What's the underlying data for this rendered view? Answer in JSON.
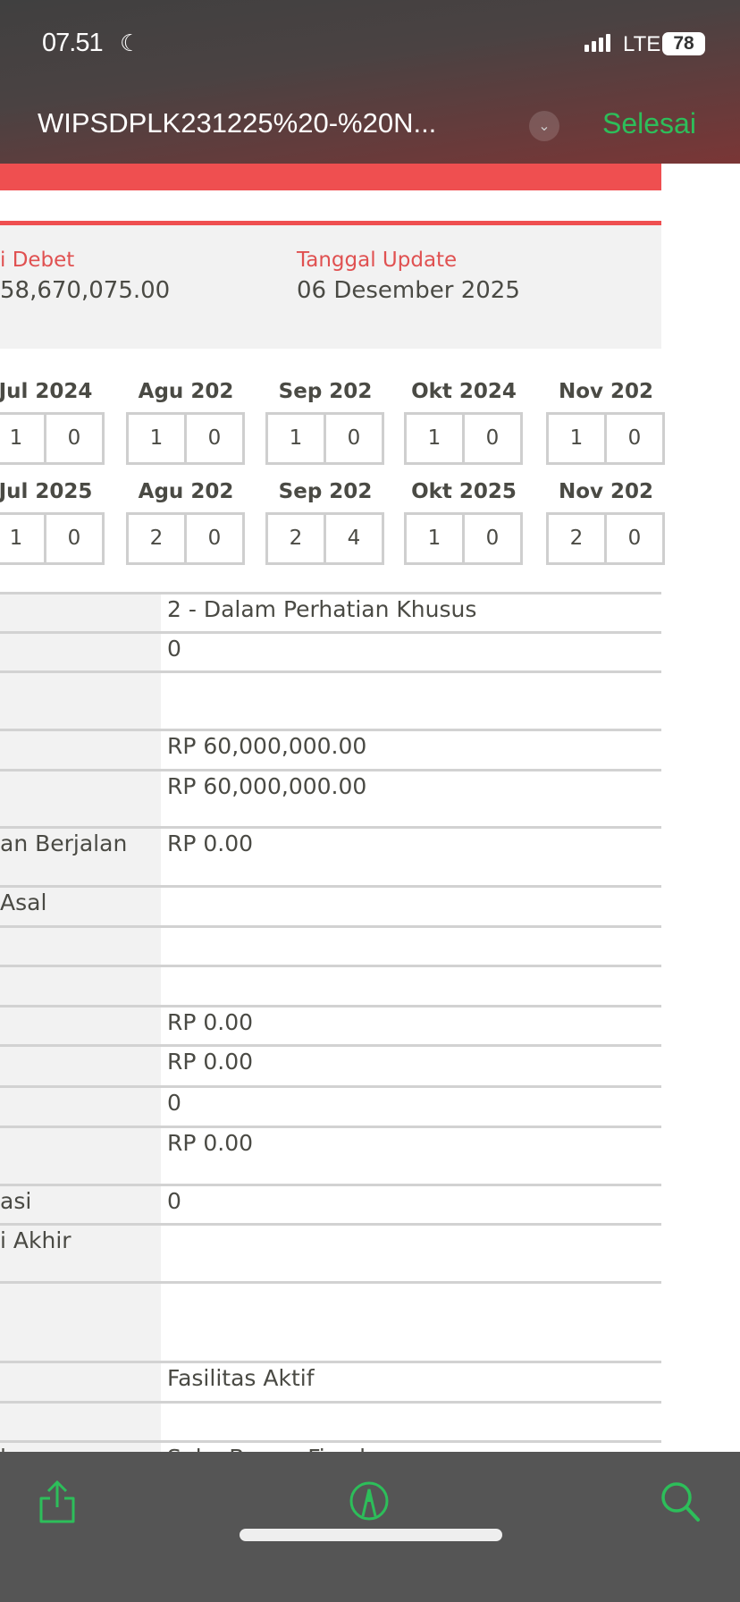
{
  "status_bar": {
    "time": "07.51",
    "network": "LTE",
    "battery": "78"
  },
  "header": {
    "title": "WIPSDPLK231225%20-%20N...",
    "done_label": "Selesai"
  },
  "info": {
    "col1_label": "i Debet",
    "col1_value": "58,670,075.00",
    "col2_label": "Tanggal Update",
    "col2_value": "06 Desember 2025"
  },
  "months_row1": [
    {
      "label": "Jul 2024",
      "a": "1",
      "b": "0"
    },
    {
      "label": "Agu 202",
      "a": "1",
      "b": "0"
    },
    {
      "label": "Sep 202",
      "a": "1",
      "b": "0"
    },
    {
      "label": "Okt 2024",
      "a": "1",
      "b": "0"
    },
    {
      "label": "Nov 202",
      "a": "1",
      "b": "0"
    }
  ],
  "months_row2": [
    {
      "label": "Jul 2025",
      "a": "1",
      "b": "0"
    },
    {
      "label": "Agu 202",
      "a": "2",
      "b": "0"
    },
    {
      "label": "Sep 202",
      "a": "2",
      "b": "4"
    },
    {
      "label": "Okt 2025",
      "a": "1",
      "b": "0"
    },
    {
      "label": "Nov 202",
      "a": "2",
      "b": "0"
    }
  ],
  "rows": [
    {
      "label": "",
      "value": "2 - Dalam Perhatian Khusus"
    },
    {
      "label": "",
      "value": "0"
    },
    {
      "label": "",
      "value": ""
    },
    {
      "label": "",
      "value": "RP 60,000,000.00"
    },
    {
      "label": "",
      "value": "RP 60,000,000.00"
    },
    {
      "label": "an Berjalan",
      "value": "RP 0.00"
    },
    {
      "label": " Asal",
      "value": ""
    },
    {
      "label": "",
      "value": ""
    },
    {
      "label": "",
      "value": ""
    },
    {
      "label": "",
      "value": "RP 0.00"
    },
    {
      "label": "",
      "value": "RP 0.00"
    },
    {
      "label": "",
      "value": "0"
    },
    {
      "label": "",
      "value": "RP 0.00"
    },
    {
      "label": "asi",
      "value": "0"
    },
    {
      "label": "i Akhir",
      "value": ""
    },
    {
      "label": "",
      "value": ""
    },
    {
      "label": "",
      "value": "Fasilitas Aktif"
    },
    {
      "label": "",
      "value": ""
    },
    {
      "label": "lan",
      "value": "Suku Bunga Fixed"
    }
  ],
  "toolbar": {
    "icons": [
      "share-icon",
      "markup-icon",
      "search-icon"
    ],
    "accent": "#2dbe5a"
  }
}
